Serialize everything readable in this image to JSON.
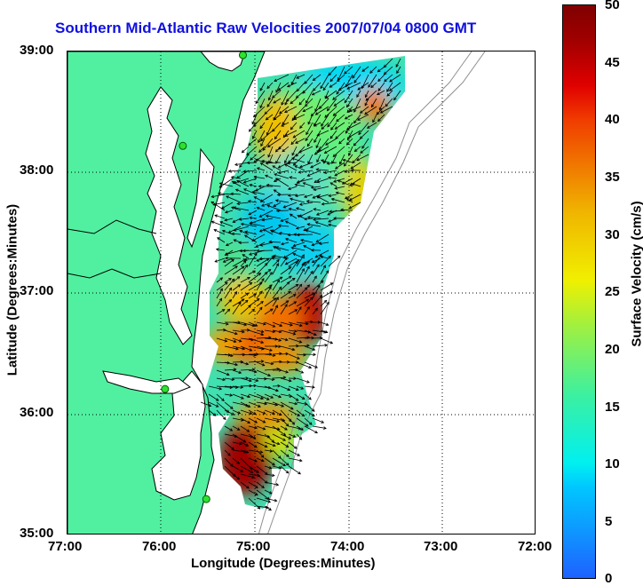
{
  "title": "Southern Mid-Atlantic Raw Velocities 2007/07/04 0800 GMT",
  "x_axis": {
    "label": "Longitude (Degrees:Minutes)",
    "ticks": [
      "77:00",
      "76:00",
      "75:00",
      "74:00",
      "73:00",
      "72:00"
    ]
  },
  "y_axis": {
    "label": "Latitude (Degrees:Minutes)",
    "ticks": [
      "39:00",
      "38:00",
      "37:00",
      "36:00",
      "35:00"
    ]
  },
  "colorbar": {
    "label": "Surface Velocity (cm/s)",
    "ticks": [
      "50",
      "45",
      "40",
      "35",
      "30",
      "25",
      "20",
      "15",
      "10",
      "5",
      "0"
    ],
    "range": [
      0,
      50
    ]
  },
  "colors": {
    "land": "#50f0a0",
    "title": "#1010e0",
    "coast_outline": "#000000",
    "isobath": "#909090",
    "station": "#30e030"
  },
  "stations": [
    {
      "lon": -75.13,
      "lat": 38.97
    },
    {
      "lon": -75.77,
      "lat": 38.22
    },
    {
      "lon": -75.96,
      "lat": 36.21
    },
    {
      "lon": -75.52,
      "lat": 35.3
    }
  ]
}
